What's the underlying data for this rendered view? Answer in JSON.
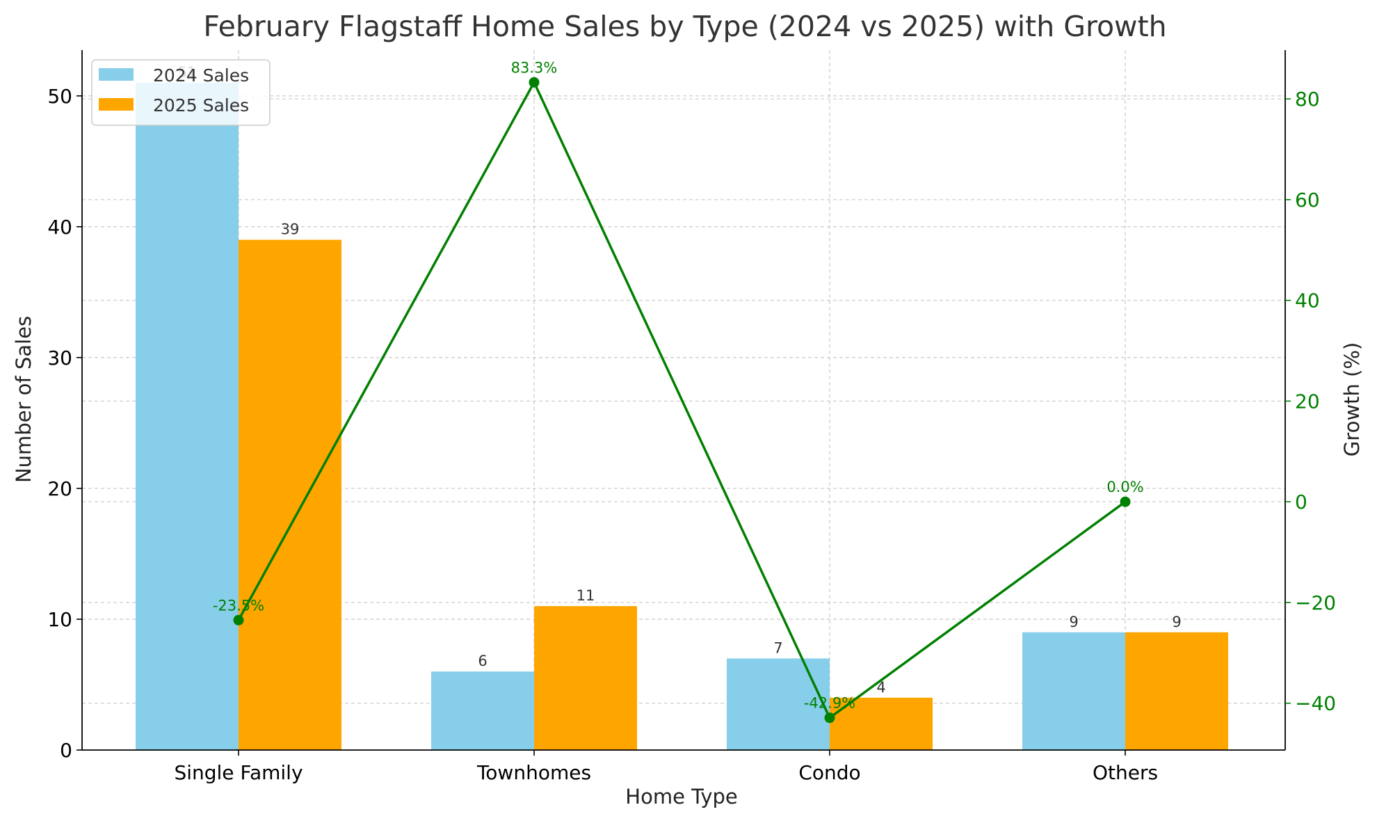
{
  "chart_data": {
    "type": "bar",
    "title": "February Flagstaff Home Sales by Type (2024 vs 2025) with Growth",
    "xlabel": "Home Type",
    "ylabel": "Number of Sales",
    "ylabel_right": "Growth (%)",
    "categories": [
      "Single Family",
      "Townhomes",
      "Condo",
      "Others"
    ],
    "series": [
      {
        "name": "2024 Sales",
        "values": [
          51,
          6,
          7,
          9
        ],
        "labels": [
          "51",
          "6",
          "7",
          "9"
        ],
        "color": "#87CEEB"
      },
      {
        "name": "2025 Sales",
        "values": [
          39,
          11,
          4,
          9
        ],
        "labels": [
          "39",
          "11",
          "4",
          "9"
        ],
        "color": "#FFA500"
      }
    ],
    "growth_series": {
      "type": "line",
      "axis": "right",
      "values": [
        -23.5,
        83.3,
        -42.9,
        0.0
      ],
      "labels": [
        "-23.5%",
        "83.3%",
        "-42.9%",
        "0.0%"
      ],
      "color": "#008000"
    },
    "ylim": [
      0,
      53.5
    ],
    "yticks": [
      0,
      10,
      20,
      30,
      40,
      50
    ],
    "ylim_right": [
      -49.3,
      89.7
    ],
    "yticks_right": [
      -40,
      -20,
      0,
      20,
      40,
      60,
      80
    ],
    "grid": true,
    "legend": "top-left"
  }
}
